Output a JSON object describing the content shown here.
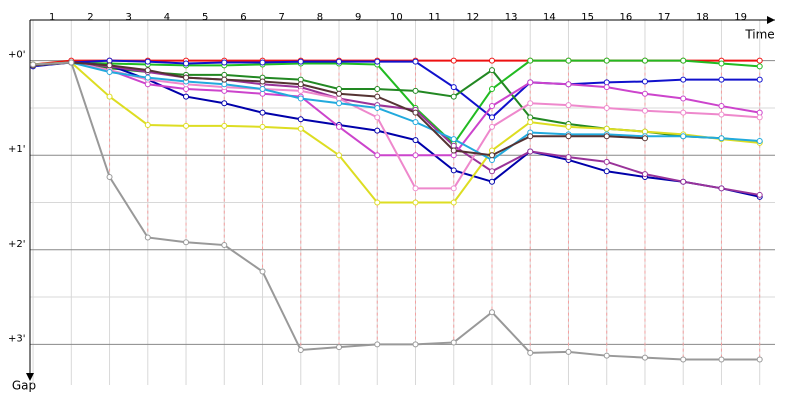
{
  "chart_data": {
    "type": "line",
    "x_axis_label": "Time",
    "y_axis_label": "Gap",
    "x": [
      0,
      1,
      2,
      3,
      4,
      5,
      6,
      7,
      8,
      9,
      10,
      11,
      12,
      13,
      14,
      15,
      16,
      17,
      18,
      19
    ],
    "xlim": [
      -0.08,
      19.4
    ],
    "xticks": [
      {
        "value": 0.5,
        "label": "1"
      },
      {
        "value": 1.5,
        "label": "2"
      },
      {
        "value": 2.5,
        "label": "3"
      },
      {
        "value": 3.5,
        "label": "4"
      },
      {
        "value": 4.5,
        "label": "5"
      },
      {
        "value": 5.5,
        "label": "6"
      },
      {
        "value": 6.5,
        "label": "7"
      },
      {
        "value": 7.5,
        "label": "8"
      },
      {
        "value": 8.5,
        "label": "9"
      },
      {
        "value": 9.5,
        "label": "10"
      },
      {
        "value": 10.5,
        "label": "11"
      },
      {
        "value": 11.5,
        "label": "12"
      },
      {
        "value": 12.5,
        "label": "13"
      },
      {
        "value": 13.5,
        "label": "14"
      },
      {
        "value": 14.5,
        "label": "15"
      },
      {
        "value": 15.5,
        "label": "16"
      },
      {
        "value": 16.5,
        "label": "17"
      },
      {
        "value": 17.5,
        "label": "18"
      },
      {
        "value": 18.5,
        "label": "19"
      }
    ],
    "ylim": [
      -0.43,
      3.43
    ],
    "y_inverted": true,
    "yticks": [
      {
        "value": 0,
        "label": "+0'"
      },
      {
        "value": 1,
        "label": "+1'"
      },
      {
        "value": 2,
        "label": "+2'"
      },
      {
        "value": 3,
        "label": "+3'"
      }
    ],
    "minor_yticks": [
      0.5,
      1.5,
      2.5
    ],
    "grid": true,
    "series": [
      {
        "color": "#ee1111",
        "values": [
          0.04,
          0,
          0,
          0,
          0,
          0,
          0,
          0,
          0,
          0,
          0,
          0,
          0,
          0,
          0,
          0,
          0,
          0,
          0,
          0
        ]
      },
      {
        "color": "#22bb22",
        "values": [
          0.04,
          0.02,
          0.03,
          0.04,
          0.05,
          0.05,
          0.04,
          0.03,
          0.03,
          0.04,
          0.5,
          0.88,
          0.3,
          0,
          0,
          0,
          0,
          0,
          0.03,
          0.06
        ]
      },
      {
        "color": "#1111cc",
        "values": [
          0.06,
          0.02,
          0,
          0.01,
          0.03,
          0.02,
          0.02,
          0.01,
          0.01,
          0.01,
          0.01,
          0.28,
          0.6,
          0.23,
          0.25,
          0.23,
          0.22,
          0.2,
          0.2,
          0.2
        ]
      },
      {
        "color": "#228822",
        "values": [
          0.05,
          0.02,
          0.08,
          0.12,
          0.15,
          0.15,
          0.18,
          0.2,
          0.3,
          0.3,
          0.32,
          0.38,
          0.1,
          0.6,
          0.67,
          0.72,
          0.75,
          0.8,
          0.82,
          0.86
        ]
      },
      {
        "color": "#0000aa",
        "values": [
          0.05,
          0.02,
          0.05,
          0.2,
          0.38,
          0.45,
          0.55,
          0.62,
          0.68,
          0.74,
          0.84,
          1.16,
          1.28,
          0.96,
          1.05,
          1.17,
          1.23,
          1.28,
          1.35,
          1.44
        ]
      },
      {
        "color": "#993399",
        "values": [
          0.05,
          0.02,
          0.06,
          0.12,
          0.18,
          0.2,
          0.25,
          0.28,
          0.4,
          0.47,
          0.52,
          0.9,
          1.17,
          0.96,
          1.02,
          1.07,
          1.2,
          1.28,
          1.35,
          1.42
        ]
      },
      {
        "color": "#cc44cc",
        "values": [
          0.05,
          0.02,
          0.1,
          0.25,
          0.3,
          0.32,
          0.35,
          0.38,
          0.7,
          1.0,
          1.0,
          1.0,
          0.48,
          0.23,
          0.25,
          0.28,
          0.35,
          0.4,
          0.48,
          0.55
        ]
      },
      {
        "color": "#ee88cc",
        "values": [
          0.05,
          0.02,
          0.1,
          0.2,
          0.25,
          0.28,
          0.3,
          0.32,
          0.4,
          0.6,
          1.35,
          1.35,
          0.7,
          0.45,
          0.47,
          0.5,
          0.53,
          0.55,
          0.57,
          0.6
        ]
      },
      {
        "color": "#dddd22",
        "values": [
          0.04,
          0.02,
          0.38,
          0.68,
          0.69,
          0.69,
          0.7,
          0.72,
          1.0,
          1.5,
          1.5,
          1.5,
          0.95,
          0.65,
          0.7,
          0.72,
          0.75,
          0.78,
          0.83,
          0.87
        ]
      },
      {
        "color": "#22aadd",
        "values": [
          0.05,
          0.02,
          0.12,
          0.18,
          0.22,
          0.25,
          0.3,
          0.4,
          0.45,
          0.5,
          0.65,
          0.83,
          1.05,
          0.76,
          0.78,
          0.78,
          0.8,
          0.8,
          0.82,
          0.85
        ]
      },
      {
        "color": "#553333",
        "values": [
          0.05,
          0.02,
          0.05,
          0.1,
          0.18,
          0.2,
          0.22,
          0.25,
          0.35,
          0.38,
          0.55,
          0.95,
          1.0,
          0.8,
          0.8,
          0.8,
          0.82,
          null,
          null,
          null
        ]
      },
      {
        "color": "#999999",
        "values": [
          0.04,
          0.02,
          1.23,
          1.87,
          1.92,
          1.95,
          2.23,
          3.06,
          3.03,
          3.0,
          3.0,
          2.98,
          2.66,
          3.09,
          3.08,
          3.12,
          3.14,
          3.16,
          3.16,
          3.16
        ]
      }
    ]
  }
}
